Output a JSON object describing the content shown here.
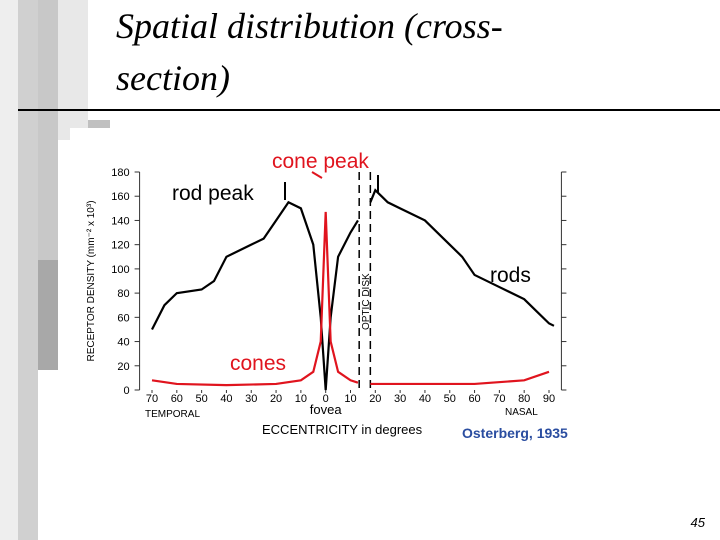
{
  "slide": {
    "title_line1": "Spatial distribution (cross-",
    "title_line2": "section)",
    "page_number": "45"
  },
  "chart_data": {
    "type": "line",
    "ylabel": "RECEPTOR DENSITY (mm⁻² x 10³)",
    "xlabel": "ECCENTRICITY in degrees",
    "x_left_label": "TEMPORAL",
    "x_right_label": "NASAL",
    "x_center_label": "fovea",
    "source": "Osterberg, 1935",
    "annotations": {
      "rod_peak": "rod peak",
      "cone_peak": "cone peak"
    },
    "optic_disk": {
      "label": "OPTIC DISK",
      "xrange": [
        13.5,
        18
      ]
    },
    "xlim": [
      -75,
      95
    ],
    "ylim": [
      0,
      180
    ],
    "xticks": [
      {
        "value": -70,
        "label": "70"
      },
      {
        "value": -60,
        "label": "60"
      },
      {
        "value": -50,
        "label": "50"
      },
      {
        "value": -40,
        "label": "40"
      },
      {
        "value": -30,
        "label": "30"
      },
      {
        "value": -20,
        "label": "20"
      },
      {
        "value": -10,
        "label": "10"
      },
      0,
      10,
      20,
      30,
      40,
      50,
      60,
      70,
      80,
      90
    ],
    "yticks": [
      0,
      20,
      40,
      60,
      80,
      100,
      120,
      140,
      160,
      180
    ],
    "series": [
      {
        "name": "rods",
        "color": "#000000",
        "x": [
          -70,
          -65,
          -60,
          -50,
          -45,
          -40,
          -30,
          -25,
          -20,
          -15,
          -10,
          -5,
          -2,
          0,
          2,
          5,
          10,
          13,
          15,
          18,
          20,
          25,
          30,
          40,
          50,
          55,
          60,
          70,
          80,
          85,
          90,
          92
        ],
        "values": [
          50,
          70,
          80,
          83,
          90,
          110,
          120,
          125,
          140,
          155,
          150,
          120,
          60,
          0,
          60,
          110,
          130,
          140,
          null,
          155,
          165,
          155,
          150,
          140,
          120,
          110,
          95,
          85,
          75,
          65,
          55,
          53
        ]
      },
      {
        "name": "cones",
        "color": "#e0141e",
        "x": [
          -70,
          -60,
          -40,
          -20,
          -10,
          -5,
          -2,
          0,
          2,
          5,
          10,
          13,
          15,
          18,
          40,
          60,
          80,
          90
        ],
        "values": [
          8,
          5,
          4,
          5,
          8,
          15,
          40,
          147,
          40,
          15,
          8,
          6,
          null,
          5,
          5,
          5,
          8,
          15
        ]
      }
    ]
  }
}
